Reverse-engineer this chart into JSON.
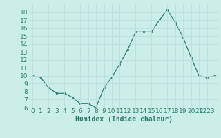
{
  "x": [
    0,
    1,
    2,
    3,
    4,
    5,
    6,
    7,
    8,
    9,
    10,
    11,
    12,
    13,
    14,
    15,
    16,
    17,
    18,
    19,
    20,
    21,
    22,
    23
  ],
  "y": [
    10.0,
    9.8,
    8.5,
    7.8,
    7.8,
    7.3,
    6.5,
    6.5,
    6.0,
    8.5,
    9.8,
    11.5,
    13.3,
    15.5,
    15.5,
    15.5,
    17.0,
    18.3,
    16.7,
    14.8,
    12.3,
    10.0,
    9.8,
    10.0
  ],
  "xlabel": "Humidex (Indice chaleur)",
  "ylim": [
    6,
    19
  ],
  "xlim": [
    -0.5,
    23.5
  ],
  "yticks": [
    6,
    7,
    8,
    9,
    10,
    11,
    12,
    13,
    14,
    15,
    16,
    17,
    18
  ],
  "xticks": [
    0,
    1,
    2,
    3,
    4,
    5,
    6,
    7,
    8,
    9,
    10,
    11,
    12,
    13,
    14,
    15,
    16,
    17,
    18,
    19,
    20,
    21,
    22,
    23
  ],
  "line_color": "#2d7d6e",
  "marker": "s",
  "marker_size": 2.0,
  "background_color": "#cceee8",
  "grid_color": "#bbdddd",
  "tick_color": "#2d7d6e",
  "xlabel_fontsize": 7,
  "tick_fontsize": 6.5
}
